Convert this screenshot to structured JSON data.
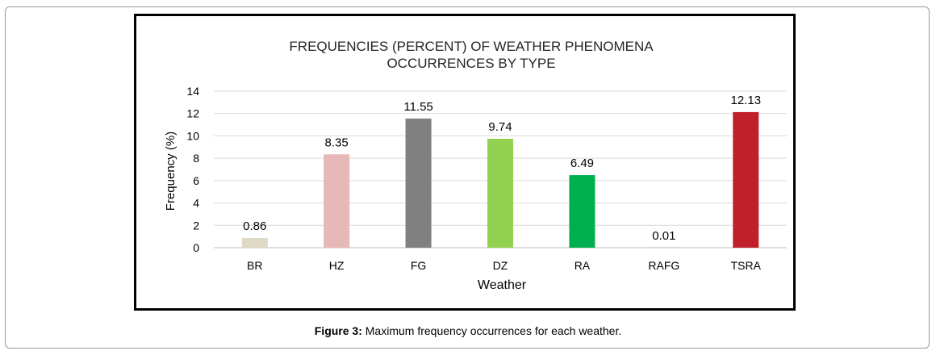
{
  "chart_data": {
    "type": "bar",
    "title_lines": [
      "FREQUENCIES (PERCENT) OF WEATHER PHENOMENA",
      "OCCURRENCES BY TYPE"
    ],
    "xlabel": "Weather",
    "ylabel": "Frequency (%)",
    "categories": [
      "BR",
      "HZ",
      "FG",
      "DZ",
      "RA",
      "RAFG",
      "TSRA"
    ],
    "values": [
      0.86,
      8.35,
      11.55,
      9.74,
      6.49,
      0.01,
      12.13
    ],
    "value_labels": [
      "0.86",
      "8.35",
      "11.55",
      "9.74",
      "6.49",
      "0.01",
      "12.13"
    ],
    "colors": [
      "#ddd9c4",
      "#e6b8b7",
      "#808080",
      "#92d050",
      "#00b050",
      "#7f7f7f",
      "#c0202a"
    ],
    "yticks": [
      0,
      2,
      4,
      6,
      8,
      10,
      12,
      14
    ],
    "ylim": [
      0,
      14
    ],
    "grid": true,
    "legend": "none"
  },
  "caption": {
    "label": "Figure 3:",
    "text": " Maximum frequency occurrences for each weather."
  }
}
